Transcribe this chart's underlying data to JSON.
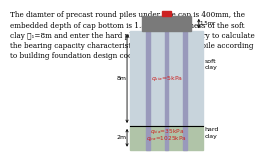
{
  "text_block_lines": [
    "The diamter of precast round piles under pile cap is 400mm, the",
    "embedded depth of cap bottom is 1.5m, the thickness of the soft",
    "clay ℓ₁=8m and enter the hard plastic clay ℓ₂=2m. Try to calculate",
    "the bearing capacity characteristic value of a single pile according",
    "to building foundation design code."
  ],
  "text_fontsize": 5.2,
  "cap_color": "#7a7a7a",
  "pile_color": "#9999bb",
  "soft_color": "#c8d4dc",
  "hard_color": "#b0c4a8",
  "load_color": "#cc2222",
  "label_color_red": "#cc2222",
  "soft_clay_label": "soft\nclay",
  "hard_clay_label": "hard\nclay",
  "qsia_soft": "qₛᴵᵃ=5kPa",
  "qsia_hard": "qₛᴵᵃ=35kPa",
  "qpa_hard": "qₚᵃ=1025kPa",
  "dim_8m": "8m",
  "dim_2m": "2m",
  "dim_15m": "1.5m"
}
